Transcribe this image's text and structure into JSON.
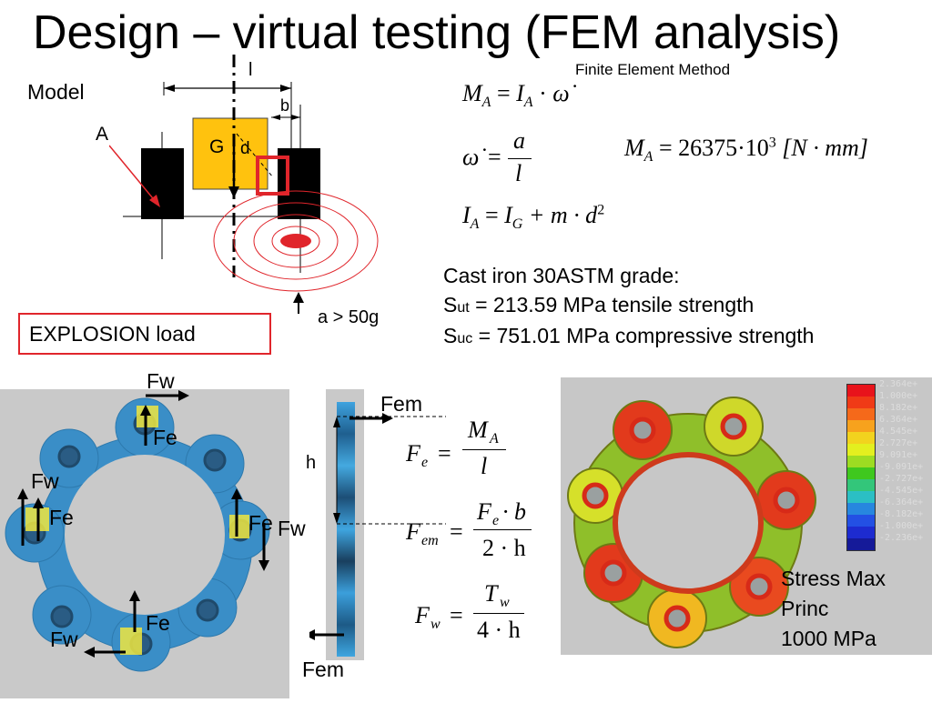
{
  "title": "Design – virtual testing (FEM analysis)",
  "fem_note": "Finite Element Method",
  "model": {
    "label": "Model",
    "point_A": "A",
    "dim_l": "l",
    "dim_b": "b",
    "point_G": "G",
    "dim_d": "d",
    "acceleration": "a > 50g",
    "load_box": "EXPLOSION load"
  },
  "equations": {
    "moment": {
      "lhs": "M",
      "lhs_sub": "A",
      "rhs1": "I",
      "rhs1_sub": "A",
      "rhs2": "ω̇"
    },
    "omega": {
      "lhs": "ω̇",
      "num": "a",
      "den": "l"
    },
    "inertia": {
      "lhs": "I",
      "lhs_sub": "A",
      "rhs1": "I",
      "rhs1_sub": "G",
      "rhs2": "+ m · d",
      "exp": "2"
    },
    "moment_value": {
      "lhs": "M",
      "lhs_sub": "A",
      "value": "= 26375·10",
      "exp": "3",
      "unit": "[N · mm]"
    }
  },
  "material": {
    "title": "Cast iron 30ASTM grade:",
    "sut_symbol": "S",
    "sut_sub": "ut",
    "sut_text": " = 213.59 MPa tensile strength",
    "suc_symbol": "S",
    "suc_sub": "uc",
    "suc_text": " = 751.01 MPa compressive strength"
  },
  "loads": {
    "fw": "Fw",
    "fe": "Fe",
    "fem": "Fem",
    "h": "h"
  },
  "force_equations": {
    "fe": {
      "lhs": "F",
      "lhs_sub": "e",
      "num": "M",
      "num_sub": "A",
      "den": "l"
    },
    "fem": {
      "lhs": "F",
      "lhs_sub": "em",
      "num": "F",
      "num_sub": "e",
      "num_rest": "· b",
      "den": "2 · h"
    },
    "fw": {
      "lhs": "F",
      "lhs_sub": "w",
      "num": "T",
      "num_sub": "w",
      "den": "4 · h"
    }
  },
  "stress_plot": {
    "caption": [
      "Stress Max",
      "Princ",
      "1000 MPa"
    ],
    "legend_values": [
      "2.364e+",
      "1.000e+",
      "8.182e+",
      "6.364e+",
      "4.545e+",
      "2.727e+",
      "9.091e+",
      "-9.091e+",
      "-2.727e+",
      "-4.545e+",
      "-6.364e+",
      "-8.182e+",
      "-1.000e+",
      "-2.236e+"
    ],
    "legend_colors": [
      "#e8131b",
      "#f03a16",
      "#f5691a",
      "#f7a21d",
      "#f2d31e",
      "#e3ef1f",
      "#9ddc22",
      "#3fc81e",
      "#33c67a",
      "#2bbfc4",
      "#2787df",
      "#2350e4",
      "#1d2bd0",
      "#151a99"
    ]
  }
}
